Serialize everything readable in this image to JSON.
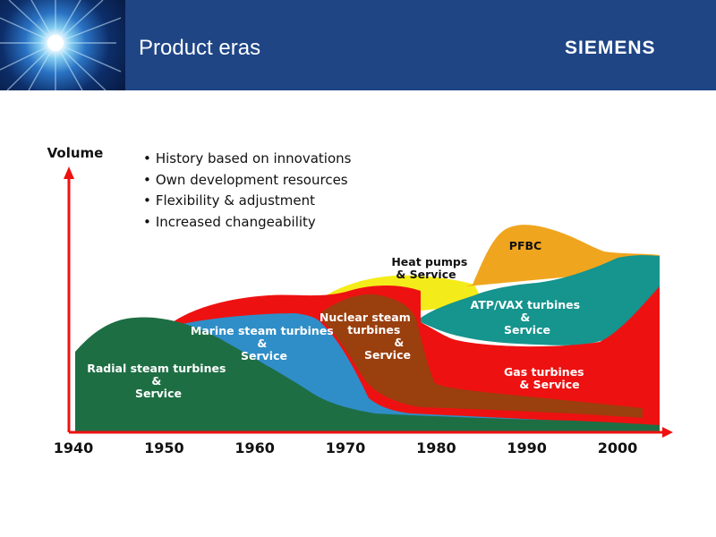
{
  "header": {
    "title": "Product eras",
    "brand": "SIEMENS",
    "colors": {
      "bar": "#1f4585",
      "text": "#ffffff"
    }
  },
  "bullets": [
    "History based on innovations",
    "Own development resources",
    "Flexibility & adjustment",
    "Increased changeability"
  ],
  "chart_data": {
    "type": "area",
    "title": "",
    "ylabel": "Volume",
    "xlabel": "",
    "x_ticks": [
      1940,
      1950,
      1960,
      1970,
      1980,
      1990,
      2000
    ],
    "xlim": [
      1940,
      2005
    ],
    "series": [
      {
        "name": "Radial steam turbines & Service",
        "label_lines": [
          "Radial steam turbines",
          "&",
          "Service"
        ],
        "color": "#1e6e44"
      },
      {
        "name": "Marine steam turbines & Service",
        "label_lines": [
          "Marine steam turbines",
          "&",
          "Service"
        ],
        "color": "#2f8ec8"
      },
      {
        "name": "Nuclear steam turbines & Service",
        "label_lines": [
          "Nuclear steam",
          "turbines",
          "&",
          "Service"
        ],
        "color": "#9a3f0e"
      },
      {
        "name": "Gas turbines & Service",
        "label_lines": [
          "Gas turbines",
          "& Service"
        ],
        "color": "#ee1111"
      },
      {
        "name": "Heat pumps & Service",
        "label_lines": [
          "Heat pumps",
          "& Service"
        ],
        "color": "#f4ec1a"
      },
      {
        "name": "ATP/VAX turbines & Service",
        "label_lines": [
          "ATP/VAX turbines",
          "&",
          "Service"
        ],
        "color": "#16948e"
      },
      {
        "name": "PFBC",
        "label_lines": [
          "PFBC"
        ],
        "color": "#f0a51e"
      }
    ]
  }
}
